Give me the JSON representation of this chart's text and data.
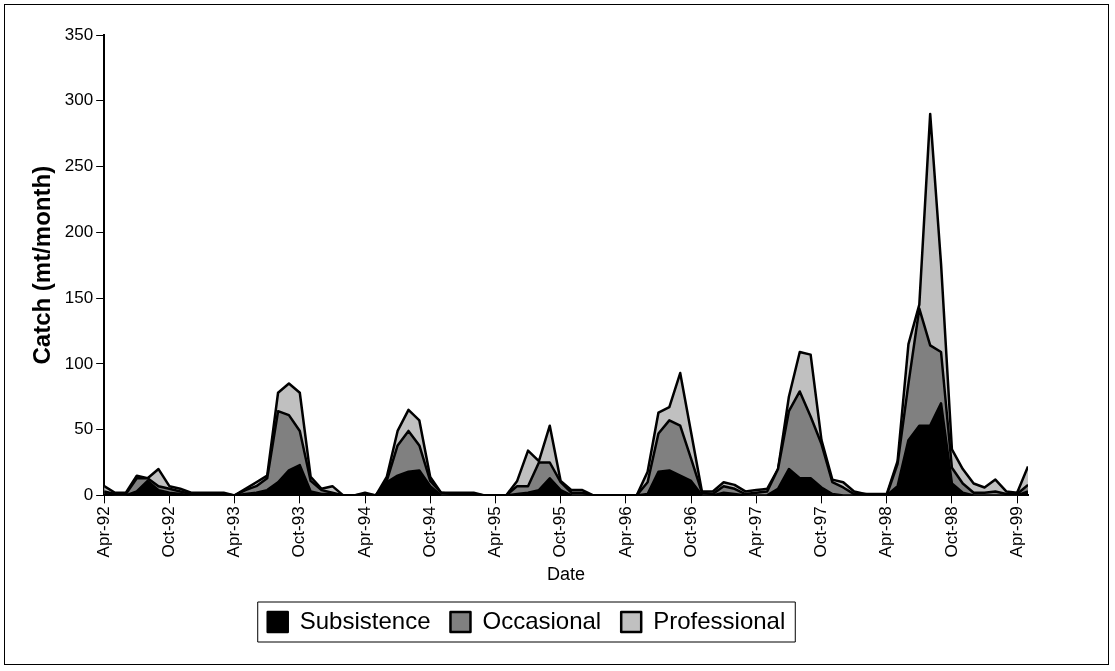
{
  "chart_data": {
    "type": "area",
    "stacked": true,
    "xlabel": "Date",
    "ylabel": "Catch (mt/month)",
    "x": [
      "1992-04",
      "1992-05",
      "1992-06",
      "1992-07",
      "1992-08",
      "1992-09",
      "1992-10",
      "1992-11",
      "1992-12",
      "1993-01",
      "1993-02",
      "1993-03",
      "1993-04",
      "1993-05",
      "1993-06",
      "1993-07",
      "1993-08",
      "1993-09",
      "1993-10",
      "1993-11",
      "1993-12",
      "1994-01",
      "1994-02",
      "1994-03",
      "1994-04",
      "1994-05",
      "1994-06",
      "1994-07",
      "1994-08",
      "1994-09",
      "1994-10",
      "1994-11",
      "1994-12",
      "1995-01",
      "1995-02",
      "1995-03",
      "1995-04",
      "1995-05",
      "1995-06",
      "1995-07",
      "1995-08",
      "1995-09",
      "1995-10",
      "1995-11",
      "1995-12",
      "1996-01",
      "1996-02",
      "1996-03",
      "1996-04",
      "1996-05",
      "1996-06",
      "1996-07",
      "1996-08",
      "1996-09",
      "1996-10",
      "1996-11",
      "1996-12",
      "1997-01",
      "1997-02",
      "1997-03",
      "1997-04",
      "1997-05",
      "1997-06",
      "1997-07",
      "1997-08",
      "1997-09",
      "1997-10",
      "1997-11",
      "1997-12",
      "1998-01",
      "1998-02",
      "1998-03",
      "1998-04",
      "1998-05",
      "1998-06",
      "1998-07",
      "1998-08",
      "1998-09",
      "1998-10",
      "1998-11",
      "1998-12",
      "1999-01",
      "1999-02",
      "1999-03",
      "1999-04",
      "1999-05"
    ],
    "series": [
      {
        "name": "Subsistence",
        "color": "#000000",
        "values": [
          1,
          0,
          0,
          3,
          11,
          4,
          2,
          1,
          0,
          0,
          0,
          0,
          0,
          1,
          2,
          4,
          10,
          19,
          23,
          3,
          1,
          1,
          0,
          0,
          0,
          0,
          10,
          15,
          18,
          19,
          7,
          0,
          0,
          0,
          0,
          0,
          0,
          0,
          1,
          2,
          4,
          13,
          4,
          0,
          0,
          0,
          0,
          0,
          0,
          0,
          1,
          18,
          19,
          15,
          11,
          0,
          0,
          2,
          1,
          0,
          0,
          0,
          5,
          20,
          13,
          13,
          6,
          1,
          0,
          0,
          0,
          0,
          0,
          7,
          42,
          53,
          53,
          70,
          9,
          2,
          0,
          0,
          0,
          0,
          0,
          3
        ]
      },
      {
        "name": "Occasional",
        "color": "#808080",
        "values": [
          2,
          1,
          1,
          10,
          2,
          3,
          3,
          2,
          1,
          1,
          1,
          1,
          0,
          3,
          5,
          9,
          54,
          42,
          26,
          8,
          3,
          1,
          0,
          0,
          1,
          0,
          1,
          23,
          31,
          19,
          4,
          2,
          1,
          1,
          1,
          0,
          0,
          0,
          6,
          5,
          21,
          12,
          6,
          2,
          2,
          0,
          0,
          0,
          0,
          0,
          9,
          29,
          38,
          38,
          17,
          2,
          1,
          5,
          4,
          1,
          2,
          3,
          15,
          44,
          66,
          47,
          33,
          9,
          6,
          1,
          1,
          0,
          0,
          17,
          43,
          89,
          61,
          39,
          12,
          7,
          2,
          2,
          3,
          1,
          1,
          5
        ]
      },
      {
        "name": "Professional",
        "color": "#c0c0c0",
        "values": [
          4,
          1,
          1,
          2,
          0,
          13,
          2,
          2,
          1,
          1,
          1,
          1,
          0,
          1,
          3,
          2,
          14,
          24,
          29,
          3,
          1,
          5,
          0,
          0,
          1,
          0,
          3,
          11,
          16,
          19,
          3,
          0,
          1,
          1,
          1,
          0,
          0,
          0,
          4,
          27,
          1,
          28,
          1,
          2,
          2,
          0,
          0,
          0,
          0,
          0,
          8,
          16,
          10,
          40,
          20,
          1,
          2,
          3,
          3,
          2,
          2,
          2,
          0,
          11,
          30,
          47,
          3,
          2,
          4,
          2,
          0,
          1,
          1,
          2,
          30,
          3,
          176,
          67,
          14,
          11,
          7,
          4,
          9,
          2,
          1,
          14
        ]
      }
    ],
    "xlim": [
      "1992-04",
      "1999-05"
    ],
    "xticks": [
      {
        "value": "1992-04",
        "label": "Apr-92"
      },
      {
        "value": "1992-10",
        "label": "Oct-92"
      },
      {
        "value": "1993-04",
        "label": "Apr-93"
      },
      {
        "value": "1993-10",
        "label": "Oct-93"
      },
      {
        "value": "1994-04",
        "label": "Apr-94"
      },
      {
        "value": "1994-10",
        "label": "Oct-94"
      },
      {
        "value": "1995-04",
        "label": "Apr-95"
      },
      {
        "value": "1995-10",
        "label": "Oct-95"
      },
      {
        "value": "1996-04",
        "label": "Apr-96"
      },
      {
        "value": "1996-10",
        "label": "Oct-96"
      },
      {
        "value": "1997-04",
        "label": "Apr-97"
      },
      {
        "value": "1997-10",
        "label": "Oct-97"
      },
      {
        "value": "1998-04",
        "label": "Apr-98"
      },
      {
        "value": "1998-10",
        "label": "Oct-98"
      },
      {
        "value": "1999-04",
        "label": "Apr-99"
      }
    ],
    "ylim": [
      0,
      350
    ],
    "yticks": [
      0,
      50,
      100,
      150,
      200,
      250,
      300,
      350
    ],
    "grid": false,
    "legend": "bottom",
    "marker": "none",
    "line_style": "solid"
  }
}
